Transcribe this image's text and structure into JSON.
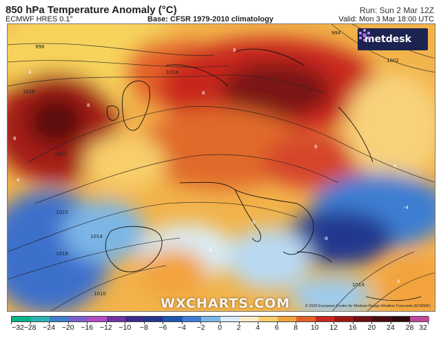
{
  "header": {
    "title": "850 hPa Temperature Anomaly (°C)",
    "model": "ECMWF HRES 0.1°",
    "base": "Base: CFSR 1979-2010 climatology",
    "run": "Run: Sun 2 Mar 12Z",
    "valid": "Valid: Mon 3 Mar 18:00 UTC"
  },
  "map": {
    "brand": "metdesk",
    "watermark": "WXCHARTS.COM",
    "copyright": "© 2025 European Centre for Medium-Range Weather Forecasts (ECMWF)",
    "isobar_labels": [
      "1018",
      "1022",
      "1026",
      "1022",
      "1014",
      "1018",
      "1010",
      "1002",
      "998",
      "994",
      "1014"
    ],
    "anomaly_labels": [
      "8",
      "8",
      "8",
      "8",
      "8",
      "4",
      "4",
      "4",
      "4",
      "0",
      "-4",
      "-4",
      "-8"
    ]
  },
  "legend": {
    "ticks": [
      "−32",
      "−28",
      "−24",
      "−20",
      "−16",
      "−12",
      "−10",
      "−8",
      "−6",
      "−4",
      "−2",
      "0",
      "2",
      "4",
      "6",
      "8",
      "10",
      "12",
      "16",
      "20",
      "24",
      "28",
      "32"
    ],
    "colors": [
      "#00b48a",
      "#2ab3b3",
      "#3f7fcf",
      "#7b5fd0",
      "#b24cc3",
      "#6f32a3",
      "#3a2a8c",
      "#23378f",
      "#1f55b0",
      "#3c7ed2",
      "#7cb6e6",
      "#d9ecf7",
      "#f7ecc8",
      "#f8cf6a",
      "#f3a33c",
      "#e4622a",
      "#c8281f",
      "#9e1714",
      "#6e0f12",
      "#4a0d12",
      "#2e0b0d",
      "#c04a9a",
      "#ff9ad7"
    ]
  }
}
